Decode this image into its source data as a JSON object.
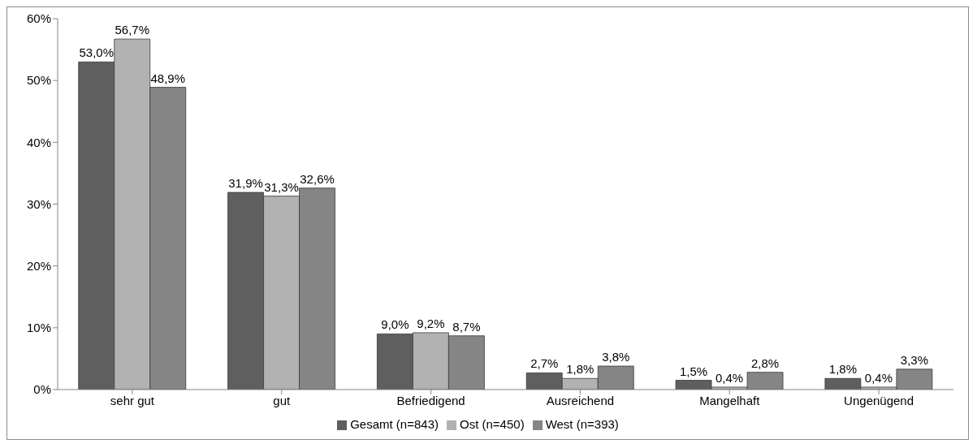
{
  "chart_data": {
    "type": "bar",
    "categories": [
      "sehr gut",
      "gut",
      "Befriedigend",
      "Ausreichend",
      "Mangelhaft",
      "Ungenügend"
    ],
    "series": [
      {
        "name": "Gesamt (n=843)",
        "color": "#5f5f5f",
        "values": [
          53.0,
          31.9,
          9.0,
          2.7,
          1.5,
          1.8
        ],
        "value_labels": [
          "53,0%",
          "31,9%",
          "9,0%",
          "2,7%",
          "1,5%",
          "1,8%"
        ]
      },
      {
        "name": "Ost (n=450)",
        "color": "#b2b2b2",
        "values": [
          56.7,
          31.3,
          9.2,
          1.8,
          0.4,
          0.4
        ],
        "value_labels": [
          "56,7%",
          "31,3%",
          "9,2%",
          "1,8%",
          "0,4%",
          "0,4%"
        ]
      },
      {
        "name": "West (n=393)",
        "color": "#858585",
        "values": [
          48.9,
          32.6,
          8.7,
          3.8,
          2.8,
          3.3
        ],
        "value_labels": [
          "48,9%",
          "32,6%",
          "8,7%",
          "3,8%",
          "2,8%",
          "3,3%"
        ]
      }
    ],
    "ylim": [
      0,
      60
    ],
    "yticks": [
      {
        "value": 0,
        "label": "0%"
      },
      {
        "value": 10,
        "label": "10%"
      },
      {
        "value": 20,
        "label": "20%"
      },
      {
        "value": 30,
        "label": "30%"
      },
      {
        "value": 40,
        "label": "40%"
      },
      {
        "value": 50,
        "label": "50%"
      },
      {
        "value": 60,
        "label": "60%"
      }
    ],
    "legend": "bottom"
  }
}
